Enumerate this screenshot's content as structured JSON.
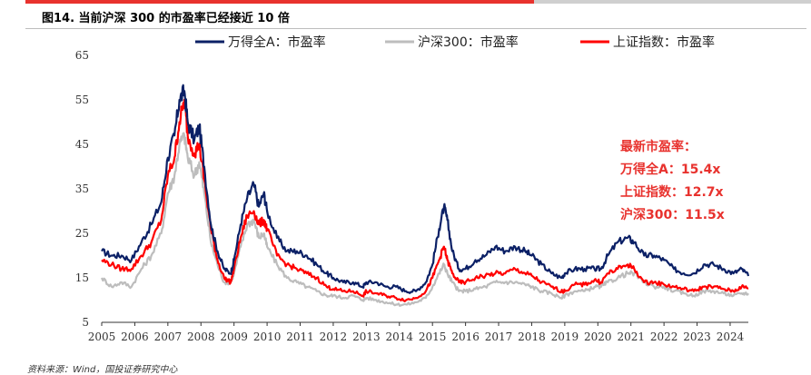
{
  "figure_title": "图14. 当前沪深 300 的市盈率已经接近 10 倍",
  "source_note": "资料来源：Wind，国投证券研究中心",
  "colors": {
    "wande_all_a": "#0b2066",
    "hs300": "#bdbdbd",
    "shanghai": "#ff0000",
    "annotation": "#e8322e",
    "accent_bar": "#e8322e"
  },
  "chart_data": {
    "type": "line",
    "title": "",
    "xlabel": "",
    "ylabel": "",
    "xlim": [
      2005,
      2024.55
    ],
    "ylim": [
      5,
      65
    ],
    "yticks": [
      5,
      15,
      25,
      35,
      45,
      55,
      65
    ],
    "xticks": [
      "2005",
      "2006",
      "2007",
      "2008",
      "2009",
      "2010",
      "2011",
      "2012",
      "2013",
      "2014",
      "2015",
      "2016",
      "2017",
      "2018",
      "2019",
      "2020",
      "2021",
      "2022",
      "2023",
      "2024"
    ],
    "grid": false,
    "legend_position": "top",
    "series": [
      {
        "name": "万得全A：市盈率",
        "color": "#0b2066",
        "x": [
          2005.0,
          2005.3,
          2005.6,
          2005.9,
          2006.2,
          2006.5,
          2006.8,
          2007.0,
          2007.2,
          2007.35,
          2007.5,
          2007.6,
          2007.8,
          2007.95,
          2008.1,
          2008.3,
          2008.5,
          2008.7,
          2008.9,
          2009.0,
          2009.2,
          2009.4,
          2009.6,
          2009.75,
          2009.9,
          2010.0,
          2010.3,
          2010.6,
          2010.9,
          2011.2,
          2011.5,
          2011.8,
          2012.0,
          2012.3,
          2012.6,
          2012.9,
          2013.0,
          2013.3,
          2013.6,
          2013.9,
          2014.2,
          2014.5,
          2014.8,
          2015.0,
          2015.2,
          2015.35,
          2015.45,
          2015.6,
          2015.8,
          2016.0,
          2016.3,
          2016.6,
          2016.9,
          2017.2,
          2017.5,
          2017.8,
          2018.0,
          2018.3,
          2018.6,
          2018.9,
          2019.0,
          2019.3,
          2019.6,
          2019.9,
          2020.1,
          2020.3,
          2020.6,
          2020.9,
          2021.1,
          2021.4,
          2021.7,
          2022.0,
          2022.3,
          2022.6,
          2022.9,
          2023.2,
          2023.5,
          2023.8,
          2024.1,
          2024.35,
          2024.55
        ],
        "values": [
          21,
          20,
          20,
          19,
          23,
          27,
          32,
          42,
          47,
          55,
          57,
          50,
          46,
          49,
          40,
          27,
          21,
          17,
          16,
          19,
          27,
          33,
          36,
          31,
          34,
          30,
          24,
          21,
          21,
          20,
          18,
          16,
          15,
          14,
          14,
          13,
          14,
          14,
          13,
          13,
          12,
          12,
          14,
          18,
          26,
          31,
          28,
          21,
          17,
          17,
          19,
          20,
          22,
          21,
          22,
          21,
          20,
          18,
          16,
          15,
          16,
          17,
          17,
          17,
          17,
          20,
          23,
          24,
          23,
          20,
          20,
          19,
          17,
          16,
          16,
          18,
          18,
          17,
          16,
          17,
          15.4
        ]
      },
      {
        "name": "沪深300：市盈率",
        "color": "#bdbdbd",
        "x": [
          2005.0,
          2005.3,
          2005.6,
          2005.9,
          2006.2,
          2006.5,
          2006.8,
          2007.0,
          2007.2,
          2007.35,
          2007.5,
          2007.6,
          2007.8,
          2007.95,
          2008.1,
          2008.3,
          2008.5,
          2008.7,
          2008.9,
          2009.0,
          2009.2,
          2009.4,
          2009.6,
          2009.75,
          2009.9,
          2010.0,
          2010.3,
          2010.6,
          2010.9,
          2011.2,
          2011.5,
          2011.8,
          2012.0,
          2012.3,
          2012.6,
          2012.9,
          2013.0,
          2013.3,
          2013.6,
          2013.9,
          2014.2,
          2014.5,
          2014.8,
          2015.0,
          2015.2,
          2015.35,
          2015.45,
          2015.6,
          2015.8,
          2016.0,
          2016.3,
          2016.6,
          2016.9,
          2017.2,
          2017.5,
          2017.8,
          2018.0,
          2018.3,
          2018.6,
          2018.9,
          2019.0,
          2019.3,
          2019.6,
          2019.9,
          2020.1,
          2020.3,
          2020.6,
          2020.9,
          2021.1,
          2021.4,
          2021.7,
          2022.0,
          2022.3,
          2022.6,
          2022.9,
          2023.2,
          2023.5,
          2023.8,
          2024.1,
          2024.35,
          2024.55
        ],
        "values": [
          15,
          13,
          14,
          13,
          17,
          20,
          25,
          34,
          38,
          45,
          47,
          42,
          38,
          41,
          34,
          23,
          18,
          14,
          14,
          16,
          22,
          27,
          28,
          24,
          25,
          22,
          18,
          15,
          14,
          13,
          12,
          11,
          11,
          10.5,
          11,
          10,
          10.5,
          10,
          9.5,
          9,
          9,
          9.5,
          10.5,
          13,
          16,
          18,
          16,
          14,
          12,
          12,
          12.5,
          13,
          14,
          14,
          14,
          13.5,
          13,
          12,
          11.5,
          10.5,
          11,
          12,
          12,
          13,
          13,
          14,
          15,
          16,
          16,
          14,
          13,
          13,
          12,
          11.5,
          11,
          12,
          12,
          11.5,
          11,
          11.5,
          11.5
        ]
      },
      {
        "name": "上证指数：市盈率",
        "color": "#ff0000",
        "x": [
          2005.0,
          2005.3,
          2005.6,
          2005.9,
          2006.2,
          2006.5,
          2006.8,
          2007.0,
          2007.2,
          2007.35,
          2007.5,
          2007.6,
          2007.8,
          2007.95,
          2008.1,
          2008.3,
          2008.5,
          2008.7,
          2008.9,
          2009.0,
          2009.2,
          2009.4,
          2009.6,
          2009.75,
          2009.9,
          2010.0,
          2010.3,
          2010.6,
          2010.9,
          2011.2,
          2011.5,
          2011.8,
          2012.0,
          2012.3,
          2012.6,
          2012.9,
          2013.0,
          2013.3,
          2013.6,
          2013.9,
          2014.2,
          2014.5,
          2014.8,
          2015.0,
          2015.2,
          2015.35,
          2015.45,
          2015.6,
          2015.8,
          2016.0,
          2016.3,
          2016.6,
          2016.9,
          2017.2,
          2017.5,
          2017.8,
          2018.0,
          2018.3,
          2018.6,
          2018.9,
          2019.0,
          2019.3,
          2019.6,
          2019.9,
          2020.1,
          2020.3,
          2020.6,
          2020.9,
          2021.1,
          2021.4,
          2021.7,
          2022.0,
          2022.3,
          2022.6,
          2022.9,
          2023.2,
          2023.5,
          2023.8,
          2024.1,
          2024.35,
          2024.55
        ],
        "values": [
          19,
          18,
          17,
          17,
          20,
          23,
          28,
          38,
          42,
          50,
          55,
          47,
          43,
          45,
          37,
          26,
          19,
          15,
          14,
          17,
          24,
          29,
          30,
          27,
          28,
          26,
          20,
          18,
          17,
          16,
          15,
          13,
          12.5,
          12,
          12,
          11,
          12,
          11.5,
          11,
          10.5,
          10,
          10.5,
          12,
          15,
          19,
          22,
          19,
          16,
          14,
          14,
          15,
          15.5,
          16,
          16,
          17,
          16,
          15.5,
          14,
          13,
          12,
          12,
          13.5,
          13.5,
          14.5,
          14,
          16,
          17,
          18,
          17,
          14,
          14,
          13.5,
          13,
          12.5,
          12,
          13,
          13,
          12.5,
          12,
          13,
          12.7
        ]
      }
    ],
    "annotation": {
      "lines": [
        "最新市盈率：",
        "万得全A：15.4x",
        "上证指数：12.7x",
        "沪深300：11.5x"
      ]
    }
  }
}
